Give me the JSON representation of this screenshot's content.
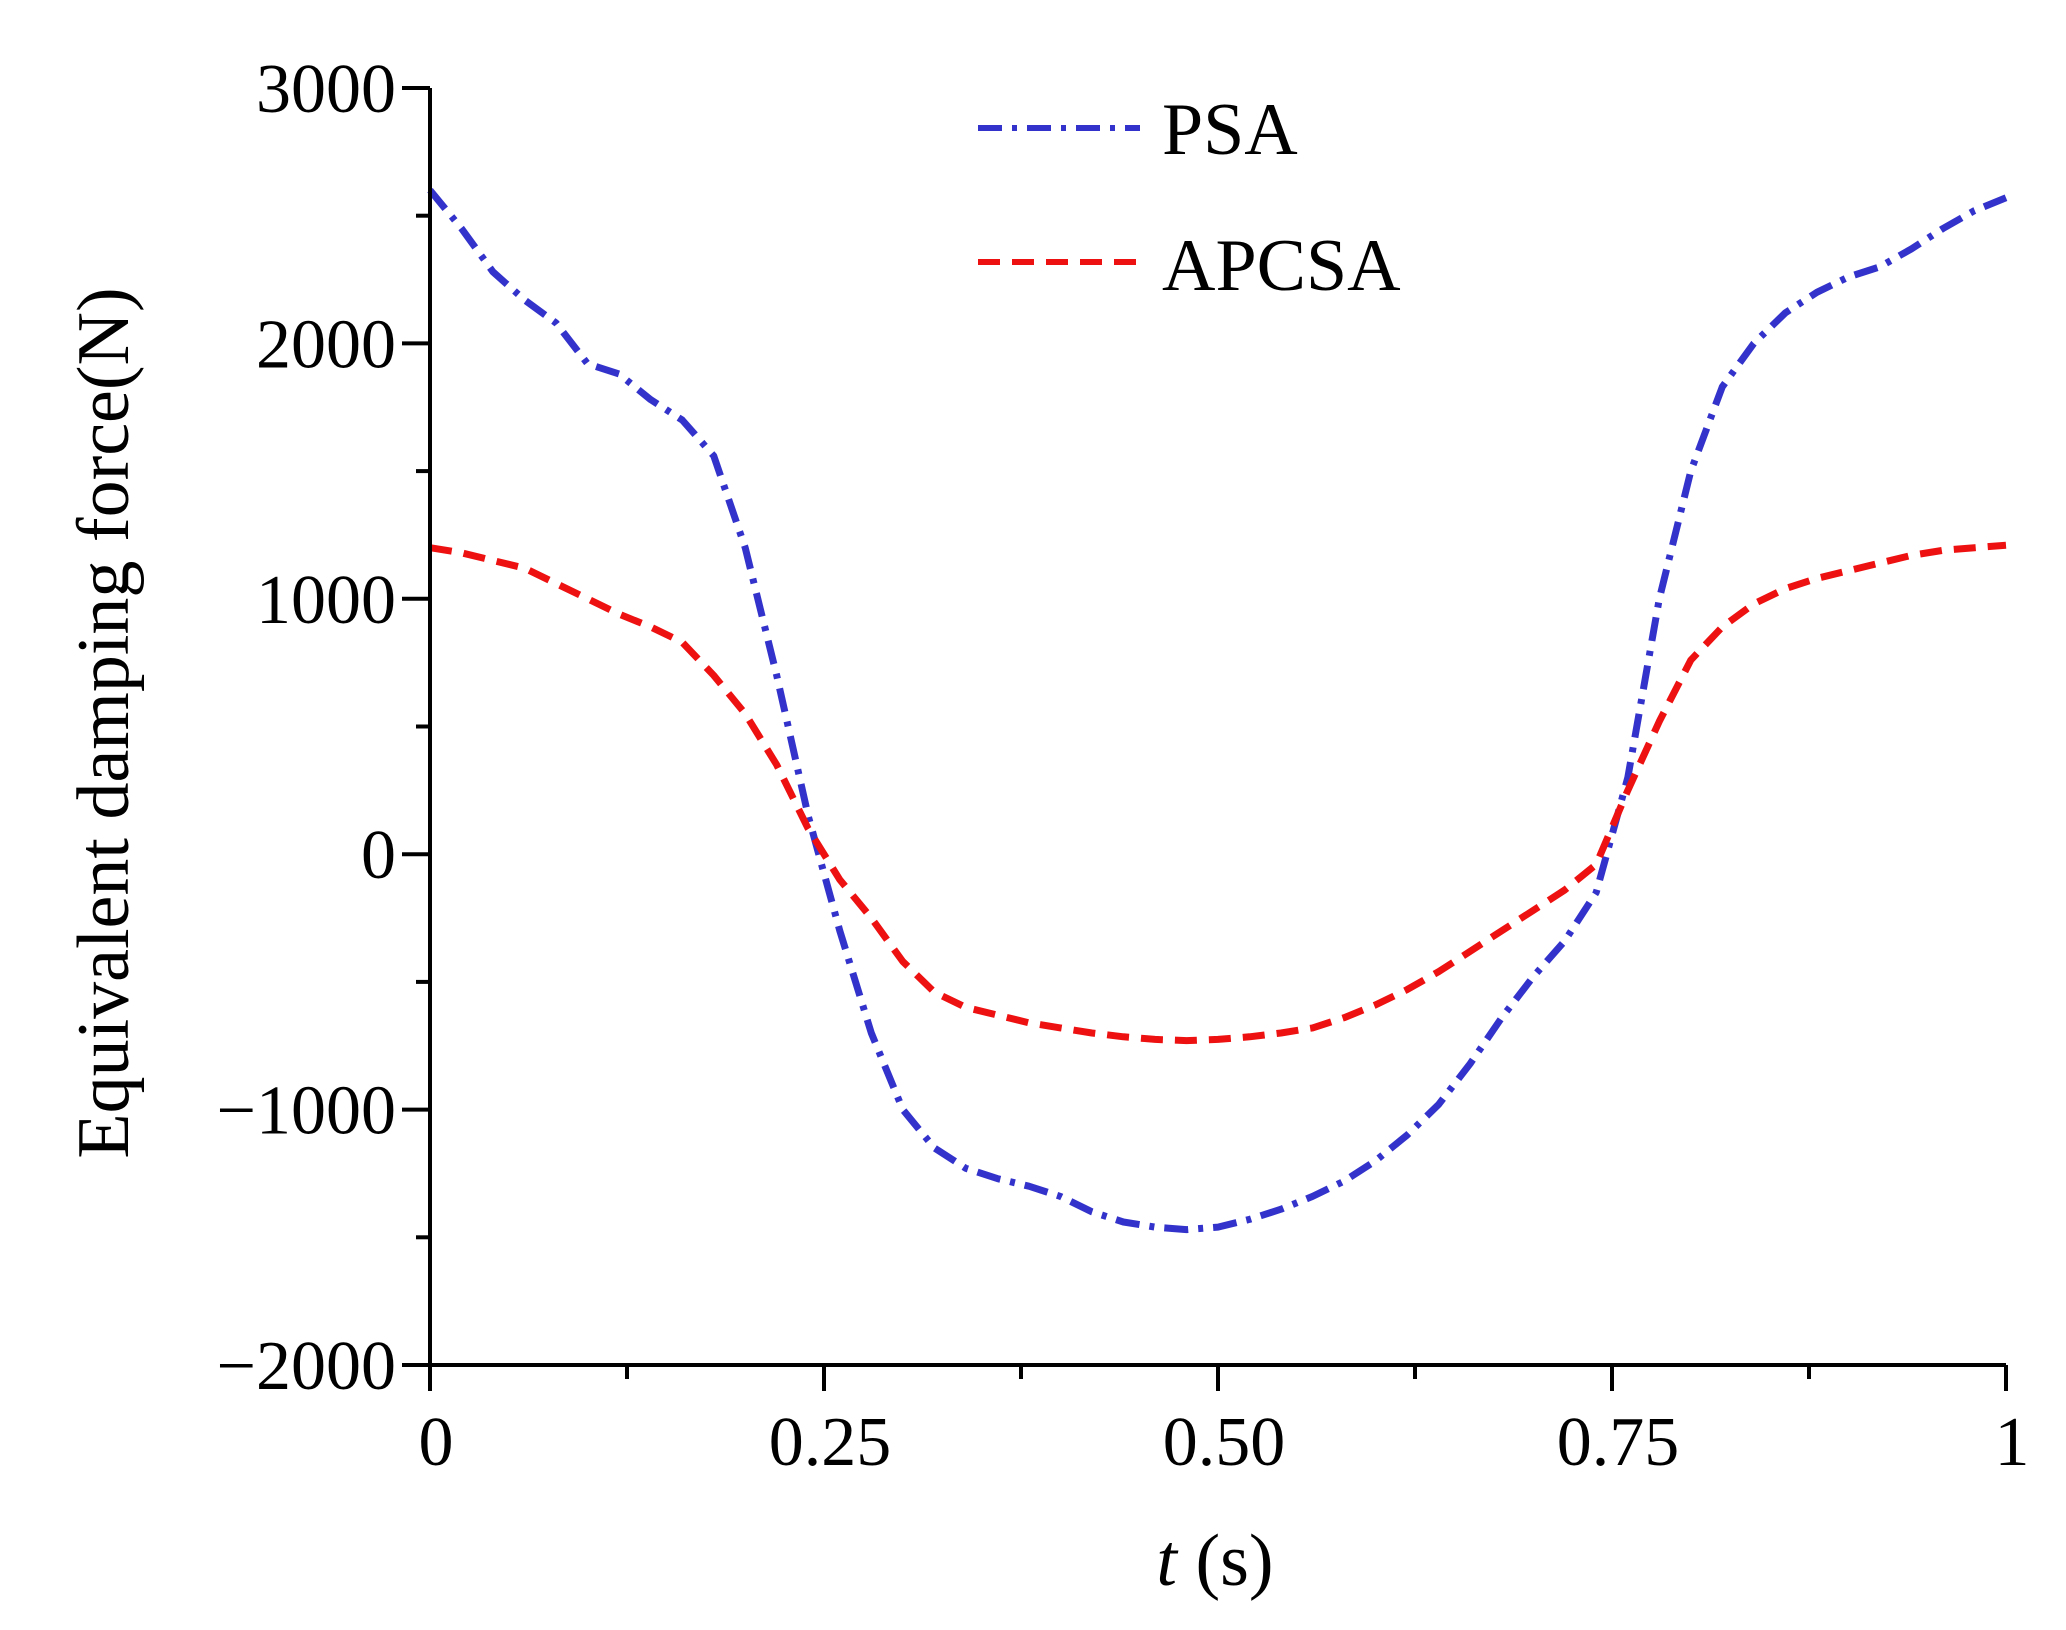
{
  "chart_data": {
    "type": "line",
    "title": "",
    "xlabel_var": "t",
    "xlabel_unit": " (s)",
    "ylabel": "Equivalent damping force(N)",
    "xlim": [
      0,
      1
    ],
    "ylim": [
      -2000,
      3000
    ],
    "x_ticks": [
      {
        "value": 0,
        "label": "0"
      },
      {
        "value": 0.25,
        "label": "0.25"
      },
      {
        "value": 0.5,
        "label": "0.50"
      },
      {
        "value": 0.75,
        "label": "0.75"
      },
      {
        "value": 1,
        "label": "1"
      }
    ],
    "x_minor_ticks": [
      0.125,
      0.375,
      0.625,
      0.875
    ],
    "y_ticks": [
      {
        "value": 3000,
        "label": "3000"
      },
      {
        "value": 2000,
        "label": "2000"
      },
      {
        "value": 1000,
        "label": "1000"
      },
      {
        "value": 0,
        "label": "0"
      },
      {
        "value": -1000,
        "label": "−1000"
      },
      {
        "value": -2000,
        "label": "−2000"
      }
    ],
    "y_minor_ticks": [
      2500,
      1500,
      500,
      -500,
      -1500
    ],
    "legend_position": "top-center",
    "series": [
      {
        "name": "PSA",
        "color": "#3333cc",
        "style": "dashdot",
        "x": [
          0,
          0.02,
          0.04,
          0.06,
          0.08,
          0.1,
          0.12,
          0.14,
          0.16,
          0.18,
          0.2,
          0.22,
          0.24,
          0.26,
          0.28,
          0.3,
          0.32,
          0.34,
          0.36,
          0.38,
          0.4,
          0.42,
          0.44,
          0.46,
          0.48,
          0.5,
          0.52,
          0.54,
          0.56,
          0.58,
          0.6,
          0.62,
          0.64,
          0.66,
          0.68,
          0.7,
          0.72,
          0.74,
          0.76,
          0.78,
          0.8,
          0.82,
          0.84,
          0.86,
          0.88,
          0.9,
          0.92,
          0.94,
          0.96,
          0.98,
          1.0
        ],
        "y": [
          2600,
          2450,
          2280,
          2170,
          2080,
          1920,
          1880,
          1780,
          1700,
          1560,
          1200,
          700,
          150,
          -300,
          -700,
          -1000,
          -1150,
          -1230,
          -1270,
          -1300,
          -1340,
          -1400,
          -1440,
          -1460,
          -1470,
          -1460,
          -1430,
          -1390,
          -1340,
          -1280,
          -1200,
          -1100,
          -980,
          -820,
          -640,
          -480,
          -340,
          -150,
          300,
          1000,
          1500,
          1830,
          2000,
          2120,
          2200,
          2260,
          2300,
          2370,
          2450,
          2520,
          2570
        ]
      },
      {
        "name": "APCSA",
        "color": "#ee1111",
        "style": "dashed",
        "x": [
          0,
          0.02,
          0.04,
          0.06,
          0.08,
          0.1,
          0.12,
          0.14,
          0.16,
          0.18,
          0.2,
          0.22,
          0.24,
          0.26,
          0.28,
          0.3,
          0.32,
          0.34,
          0.36,
          0.38,
          0.4,
          0.42,
          0.44,
          0.46,
          0.48,
          0.5,
          0.52,
          0.54,
          0.56,
          0.58,
          0.6,
          0.62,
          0.64,
          0.66,
          0.68,
          0.7,
          0.72,
          0.74,
          0.76,
          0.78,
          0.8,
          0.82,
          0.84,
          0.86,
          0.88,
          0.9,
          0.92,
          0.94,
          0.96,
          0.98,
          1.0
        ],
        "y": [
          1200,
          1180,
          1150,
          1120,
          1060,
          1000,
          940,
          890,
          830,
          700,
          550,
          350,
          100,
          -100,
          -250,
          -420,
          -540,
          -600,
          -630,
          -660,
          -680,
          -700,
          -715,
          -725,
          -730,
          -725,
          -715,
          -700,
          -680,
          -640,
          -590,
          -530,
          -460,
          -380,
          -300,
          -220,
          -140,
          -40,
          250,
          520,
          760,
          890,
          980,
          1040,
          1080,
          1110,
          1140,
          1170,
          1190,
          1200,
          1210
        ]
      }
    ]
  }
}
